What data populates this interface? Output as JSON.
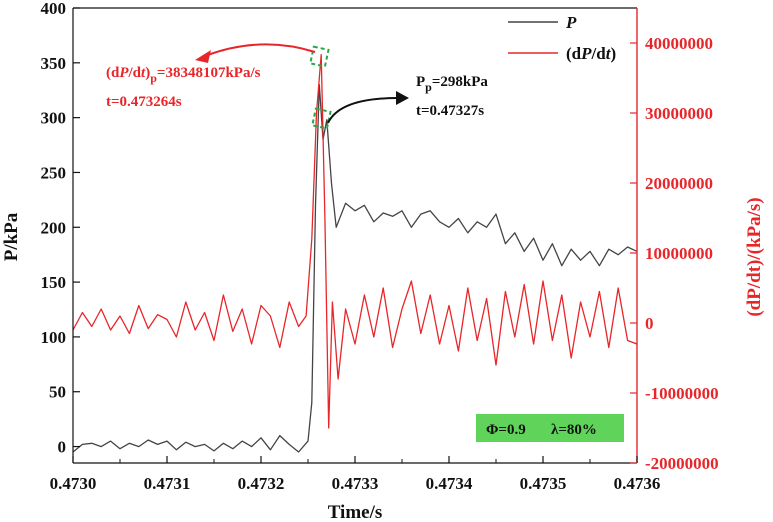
{
  "chart_data": {
    "type": "line",
    "xlabel": "Time/s",
    "ylabel": "P/kPa",
    "ylabel_right": "(dP/dt)/(kPa/s)",
    "xlim": [
      0.473,
      0.4736
    ],
    "ylim": [
      -15,
      400
    ],
    "ylim_right": [
      -20000000,
      45000000
    ],
    "x_ticks": [
      "0.4730",
      "0.4731",
      "0.4732",
      "0.4733",
      "0.4734",
      "0.4735",
      "0.4736"
    ],
    "y_ticks": [
      "0",
      "50",
      "100",
      "150",
      "200",
      "250",
      "300",
      "350",
      "400"
    ],
    "y_right_ticks": [
      "-20000000",
      "-10000000",
      "0",
      "10000000",
      "20000000",
      "30000000",
      "40000000"
    ],
    "legend": {
      "placement": "top-right",
      "p_italic": "P",
      "dp_prefix": "(d",
      "dp_italic": "P",
      "dp_mid": "/d",
      "dp_italic2": "t",
      "dp_suffix": ")"
    },
    "colors": {
      "pressure": "#444444",
      "rate": "#e8262a",
      "marker": "#27a844",
      "badge": "#5fd35a"
    },
    "series": [
      {
        "axis": "left",
        "x": [
          0.473,
          0.47301,
          0.47302,
          0.47303,
          0.47304,
          0.47305,
          0.47306,
          0.47307,
          0.47308,
          0.47309,
          0.4731,
          0.47311,
          0.47312,
          0.47313,
          0.47314,
          0.47315,
          0.47316,
          0.47317,
          0.47318,
          0.47319,
          0.4732,
          0.47321,
          0.47322,
          0.47323,
          0.47324,
          0.47325,
          0.473254,
          0.473258,
          0.473262,
          0.473266,
          0.47327,
          0.473275,
          0.47328,
          0.47329,
          0.4733,
          0.47331,
          0.47332,
          0.47333,
          0.47334,
          0.47335,
          0.47336,
          0.47337,
          0.47338,
          0.47339,
          0.4734,
          0.47341,
          0.47342,
          0.47343,
          0.47344,
          0.47345,
          0.47346,
          0.47347,
          0.47348,
          0.47349,
          0.4735,
          0.47351,
          0.47352,
          0.47353,
          0.47354,
          0.47355,
          0.47356,
          0.47357,
          0.47358,
          0.47359,
          0.4736
        ],
        "values": [
          -5,
          2,
          3,
          0,
          5,
          -2,
          3,
          0,
          6,
          2,
          5,
          -3,
          4,
          0,
          2,
          -4,
          3,
          -2,
          5,
          0,
          8,
          -3,
          10,
          2,
          -5,
          5,
          40,
          220,
          330,
          280,
          298,
          240,
          200,
          222,
          215,
          220,
          205,
          213,
          210,
          215,
          200,
          212,
          215,
          205,
          200,
          208,
          195,
          205,
          200,
          212,
          185,
          195,
          178,
          190,
          170,
          185,
          165,
          180,
          170,
          178,
          165,
          180,
          175,
          182,
          178
        ]
      },
      {
        "axis": "right",
        "x": [
          0.473,
          0.47301,
          0.47302,
          0.47303,
          0.47304,
          0.47305,
          0.47306,
          0.47307,
          0.47308,
          0.47309,
          0.4731,
          0.47311,
          0.47312,
          0.47313,
          0.47314,
          0.47315,
          0.47316,
          0.47317,
          0.47318,
          0.47319,
          0.4732,
          0.47321,
          0.47322,
          0.47323,
          0.47324,
          0.473248,
          0.473254,
          0.473259,
          0.473264,
          0.473268,
          0.473272,
          0.473276,
          0.473282,
          0.47329,
          0.4733,
          0.47331,
          0.47332,
          0.47333,
          0.47334,
          0.47335,
          0.47336,
          0.47337,
          0.47338,
          0.47339,
          0.4734,
          0.47341,
          0.47342,
          0.47343,
          0.47344,
          0.47345,
          0.47346,
          0.47347,
          0.47348,
          0.47349,
          0.4735,
          0.47351,
          0.47352,
          0.47353,
          0.47354,
          0.47355,
          0.47356,
          0.47357,
          0.47358,
          0.47359,
          0.4736
        ],
        "values": [
          -1000000,
          1500000,
          -500000,
          2000000,
          -1000000,
          1000000,
          -1500000,
          2500000,
          -800000,
          1200000,
          500000,
          -2000000,
          3000000,
          -1000000,
          1500000,
          -2500000,
          4000000,
          -1200000,
          2000000,
          -3000000,
          2500000,
          1000000,
          -3500000,
          3000000,
          -500000,
          1000000,
          12000000,
          30000000,
          38348107,
          15000000,
          -15000000,
          3000000,
          -8000000,
          2000000,
          -3000000,
          4000000,
          -2000000,
          5000000,
          -3500000,
          2000000,
          6000000,
          -1500000,
          4000000,
          -3000000,
          2500000,
          -4000000,
          5000000,
          -2500000,
          3500000,
          -6000000,
          4500000,
          -2000000,
          5500000,
          -3000000,
          6000000,
          -2500000,
          4000000,
          -5000000,
          3000000,
          -2000000,
          4500000,
          -3500000,
          5000000,
          -2500000,
          -3000000
        ]
      }
    ],
    "annotations": {
      "peak_rate_prefix": "(d",
      "peak_rate_italic": "P",
      "peak_rate_mid": "/d",
      "peak_rate_italic2": "t",
      "peak_rate_close": ")",
      "peak_rate_sub": "p",
      "peak_rate_value": "=38348107kPa/s",
      "peak_rate_time": "t=0.473264s",
      "peak_p_main": "P",
      "peak_p_sub": "p",
      "peak_p_value": "=298kPa",
      "peak_p_time": "t=0.47327s",
      "badge_phi": "Φ=0.9",
      "badge_lambda": "λ=80%"
    }
  }
}
